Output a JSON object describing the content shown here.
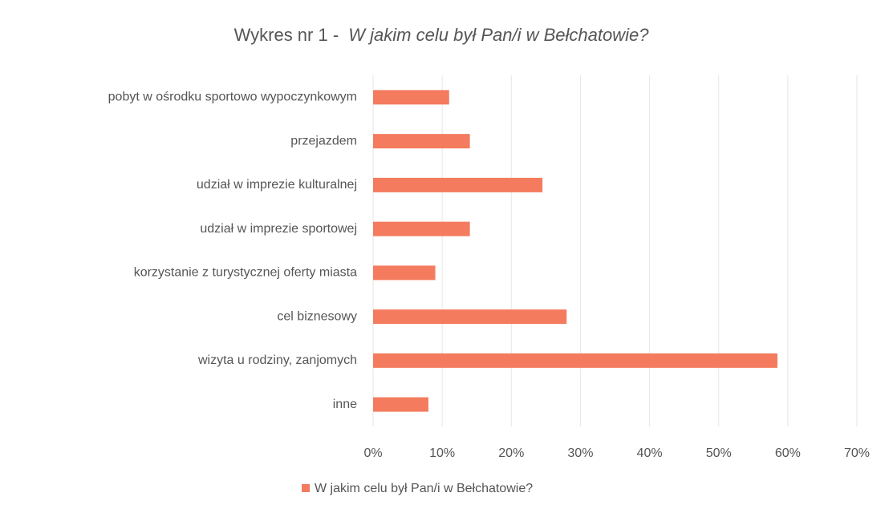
{
  "chart_data": {
    "type": "bar",
    "orientation": "horizontal",
    "title_parts": [
      "Wykres nr 1 -",
      "W jakim celu był Pan/i w Bełchatowie?"
    ],
    "categories": [
      "pobyt w ośrodku sportowo wypoczynkowym",
      "przejazdem",
      "udział w imprezie kulturalnej",
      "udział w imprezie sportowej",
      "korzystanie z turystycznej oferty miasta",
      "cel biznesowy",
      "wizyta u rodziny, zanjomych",
      "inne"
    ],
    "series": [
      {
        "name": "W jakim celu był Pan/i w Bełchatowie?",
        "color": "#f47b5e",
        "values": [
          11,
          14,
          24.5,
          14,
          9,
          28,
          58.5,
          8
        ]
      }
    ],
    "xlim": [
      0,
      70
    ],
    "xticks": [
      {
        "value": 0,
        "label": "0%"
      },
      {
        "value": 10,
        "label": "10%"
      },
      {
        "value": 20,
        "label": "20%"
      },
      {
        "value": 30,
        "label": "30%"
      },
      {
        "value": 40,
        "label": "40%"
      },
      {
        "value": 50,
        "label": "50%"
      },
      {
        "value": 60,
        "label": "60%"
      },
      {
        "value": 70,
        "label": "70%"
      }
    ],
    "grid": true,
    "legend": "bottom"
  }
}
